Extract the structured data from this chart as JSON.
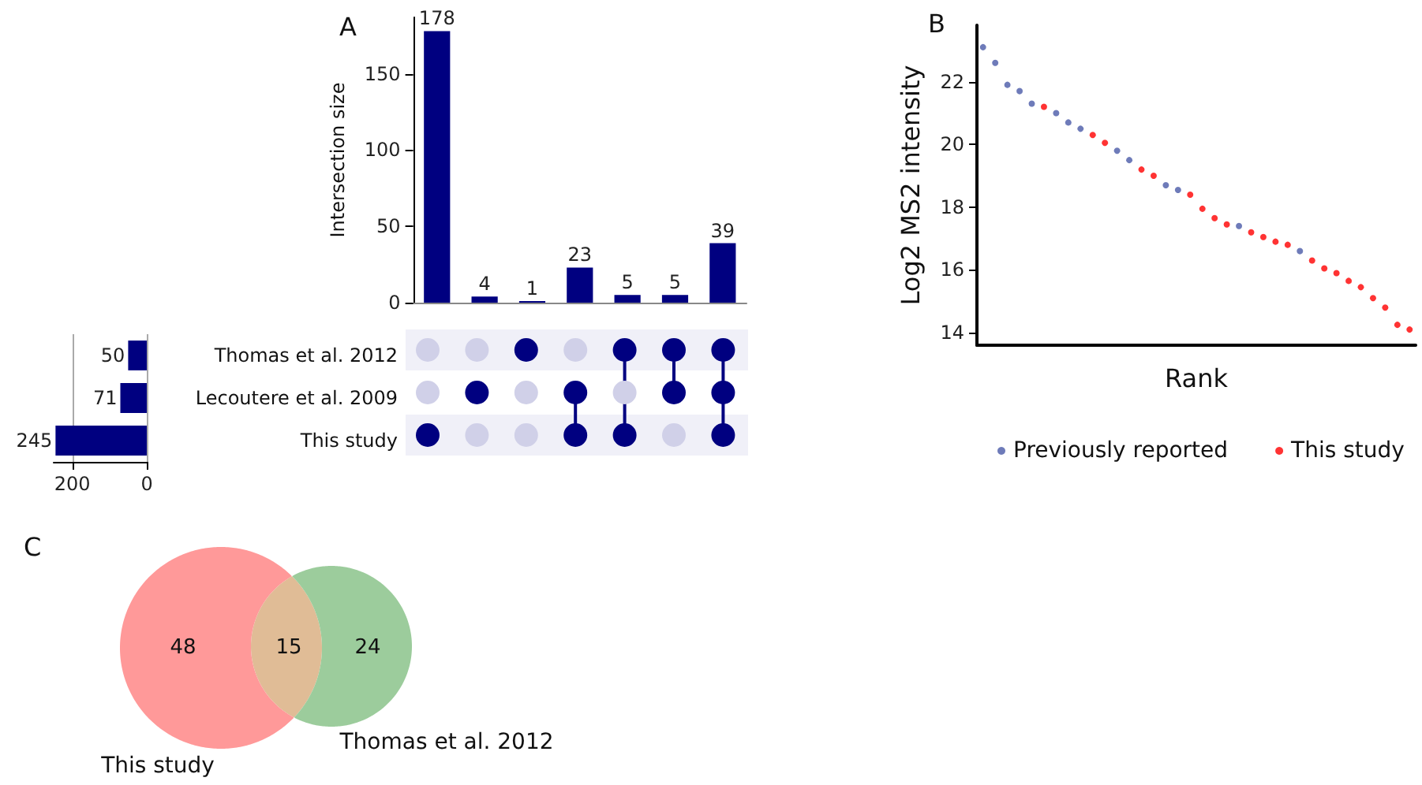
{
  "chart_data": [
    {
      "type": "bar",
      "title": "A",
      "ylabel": "Intersection size",
      "categories": [
        null,
        null,
        null,
        null,
        null,
        null,
        null
      ],
      "values": [
        178,
        4,
        1,
        23,
        5,
        5,
        39
      ],
      "color": "#000080",
      "ylim": [
        0,
        187
      ],
      "yticks": [
        0,
        50,
        100,
        150
      ],
      "data_labels": true
    },
    {
      "type": "bar",
      "orientation": "horizontal",
      "categories": [
        "Thomas et al. 2012",
        "Lecoutere et al. 2009",
        "This study"
      ],
      "values": [
        50,
        71,
        245
      ],
      "color": "#000080",
      "xlim": [
        250,
        0
      ],
      "xticks": [
        200,
        0
      ],
      "data_labels": true,
      "grid": "x"
    },
    {
      "type": "scatter",
      "title": "B",
      "xlabel": "Rank",
      "ylabel": "Log2 MS2 intensity",
      "categories": [
        null,
        null,
        null,
        null,
        null,
        null,
        null,
        null,
        null,
        null,
        null,
        null,
        null,
        null,
        null,
        null,
        null,
        null,
        null,
        null,
        null,
        null,
        null,
        null,
        null,
        null,
        null,
        null,
        null,
        null,
        null,
        null,
        null,
        null,
        null,
        null
      ],
      "ylim": [
        13.6,
        23.8
      ],
      "yticks": [
        14,
        16,
        18,
        20,
        22
      ],
      "legend": "bottom",
      "marker": "circle",
      "series": [
        {
          "name": "Previously reported",
          "color": "#4a5aa8",
          "values": [
            23.1,
            22.6,
            21.9,
            21.7,
            21.3,
            null,
            21.0,
            20.7,
            20.5,
            null,
            null,
            19.8,
            19.5,
            null,
            null,
            18.7,
            18.55,
            null,
            null,
            null,
            null,
            17.4,
            null,
            null,
            null,
            null,
            16.6,
            null,
            null,
            null,
            null,
            null,
            null,
            null,
            null,
            null
          ]
        },
        {
          "name": "This study",
          "color": "#ff0000",
          "values": [
            null,
            null,
            null,
            null,
            null,
            21.2,
            null,
            null,
            null,
            20.3,
            20.05,
            null,
            null,
            19.2,
            19.0,
            null,
            null,
            18.4,
            17.95,
            17.65,
            17.45,
            null,
            17.2,
            17.05,
            16.9,
            16.8,
            null,
            16.3,
            16.05,
            15.9,
            15.65,
            15.45,
            15.1,
            14.8,
            14.25,
            14.1
          ]
        }
      ]
    },
    {
      "type": "other",
      "title": "C",
      "categories": [
        "This study",
        null,
        "Thomas et al. 2012"
      ],
      "values": [
        48,
        15,
        24
      ],
      "colors": [
        "#ff9999",
        "#e0bc96",
        "#9ccc9c"
      ],
      "data_labels": true
    }
  ]
}
